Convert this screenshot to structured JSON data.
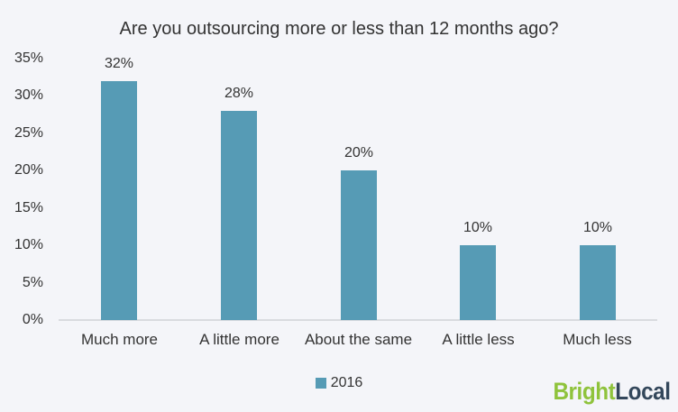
{
  "chart_data": {
    "type": "bar",
    "title": "Are you outsourcing more or less than 12 months ago?",
    "categories": [
      "Much more",
      "A little more",
      "About the same",
      "A little less",
      "Much less"
    ],
    "series": [
      {
        "name": "2016",
        "values": [
          32,
          28,
          20,
          10,
          10
        ],
        "value_labels": [
          "32%",
          "28%",
          "20%",
          "10%",
          "10%"
        ],
        "color": "#569bb5"
      }
    ],
    "ylim": [
      0,
      35
    ],
    "yticks": [
      {
        "value": 0,
        "label": "0%"
      },
      {
        "value": 5,
        "label": "5%"
      },
      {
        "value": 10,
        "label": "10%"
      },
      {
        "value": 15,
        "label": "15%"
      },
      {
        "value": 20,
        "label": "20%"
      },
      {
        "value": 25,
        "label": "25%"
      },
      {
        "value": 30,
        "label": "30%"
      },
      {
        "value": 35,
        "label": "35%"
      },
      {
        "value": 35,
        "label": "35%"
      }
    ],
    "xlabel": "",
    "ylabel": "",
    "grid": false,
    "legend_position": "bottom-center"
  },
  "branding": {
    "logo_part1": "Bright",
    "logo_part2": "Local",
    "logo_green": "#8fc33c",
    "logo_dark": "#33475b"
  },
  "colors": {
    "background": "#f4f5f9",
    "bar": "#569bb5",
    "text": "#333333",
    "axis_line": "#d9dbdf"
  }
}
